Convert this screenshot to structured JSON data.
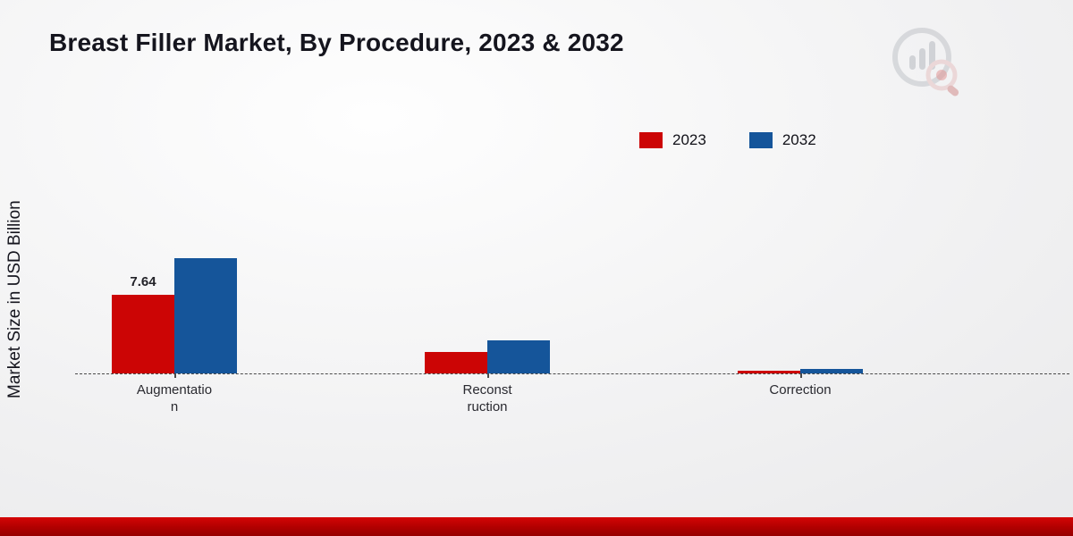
{
  "title": "Breast Filler Market, By Procedure, 2023 & 2032",
  "ylabel": "Market Size in USD Billion",
  "legend": {
    "items": [
      {
        "label": "2023",
        "color": "#cc0505"
      },
      {
        "label": "2032",
        "color": "#15559a"
      }
    ]
  },
  "icons": {
    "watermark": "bar-chart-magnifier-logo"
  },
  "colors": {
    "series_2023": "#cc0505",
    "series_2032": "#15559a",
    "footer_band": "#b00000",
    "axis_line": "#4a4a4a"
  },
  "chart_data": {
    "type": "bar",
    "title": "Breast Filler Market, By Procedure, 2023 & 2032",
    "ylabel": "Market Size in USD Billion",
    "xlabel": "",
    "categories": [
      "Augmentation",
      "Reconstruction",
      "Correction"
    ],
    "category_tick_labels": [
      "Augmentatio\nn",
      "Reconst\nruction",
      "Correction"
    ],
    "series": [
      {
        "name": "2023",
        "color": "#cc0505",
        "values": [
          7.64,
          2.1,
          0.25
        ]
      },
      {
        "name": "2032",
        "color": "#15559a",
        "values": [
          11.2,
          3.2,
          0.45
        ]
      }
    ],
    "value_labels": [
      {
        "series": "2023",
        "category": "Augmentation",
        "text": "7.64"
      }
    ],
    "ylim": [
      0,
      12
    ],
    "grid": false,
    "axis_style": "dashed-zero-baseline",
    "legend_position": "top-right"
  }
}
